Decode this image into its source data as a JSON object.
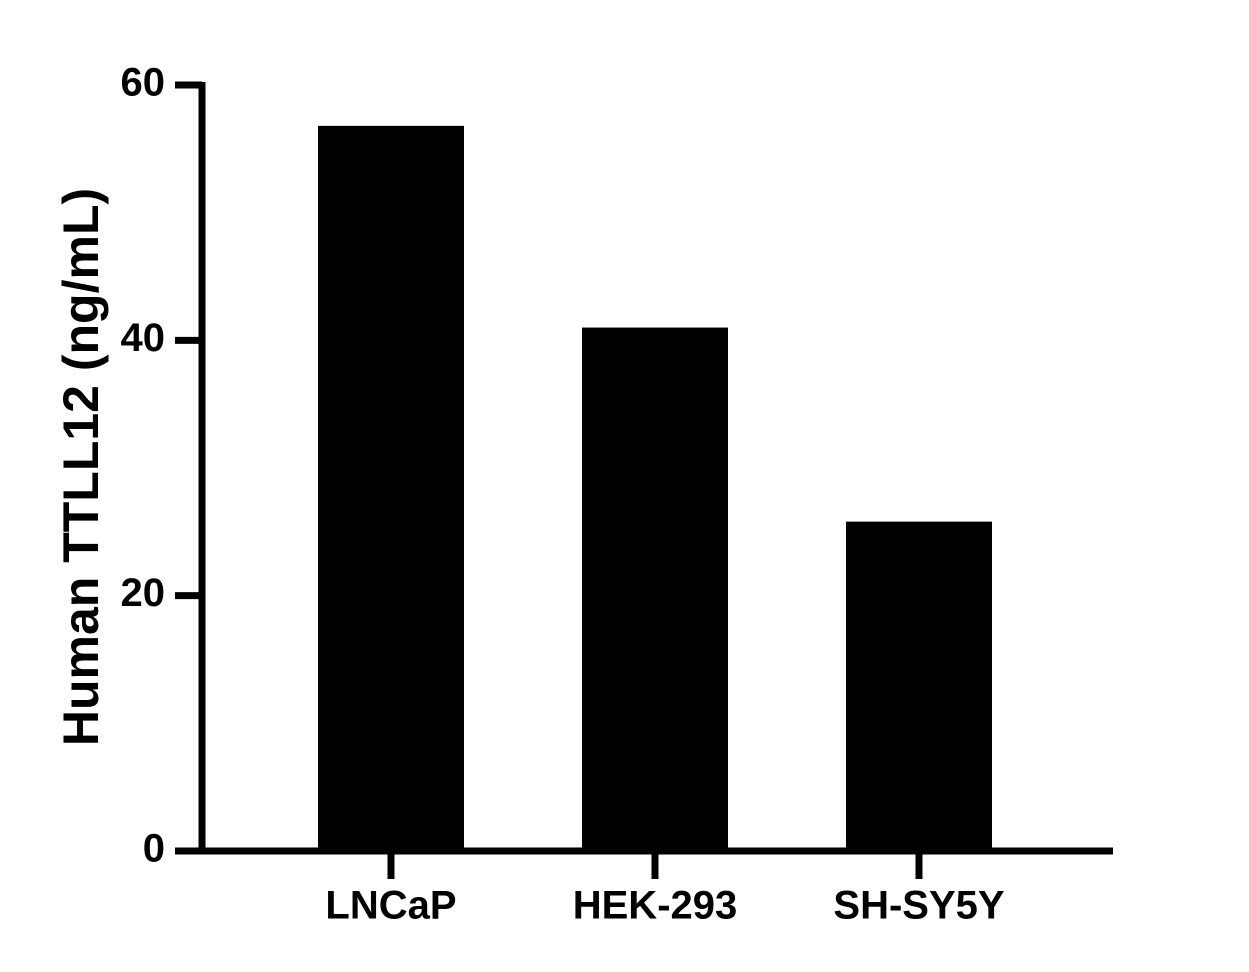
{
  "chart_data": {
    "type": "bar",
    "y_label": "Human TTLL12 (ng/mL)",
    "categories": [
      "LNCaP",
      "HEK-293",
      "SH-SY5Y"
    ],
    "values": [
      56.8,
      41.0,
      25.8
    ],
    "color": "#000000",
    "ylim": [
      0,
      60
    ],
    "yticks": [
      0,
      20,
      40,
      60
    ],
    "grid": false
  }
}
